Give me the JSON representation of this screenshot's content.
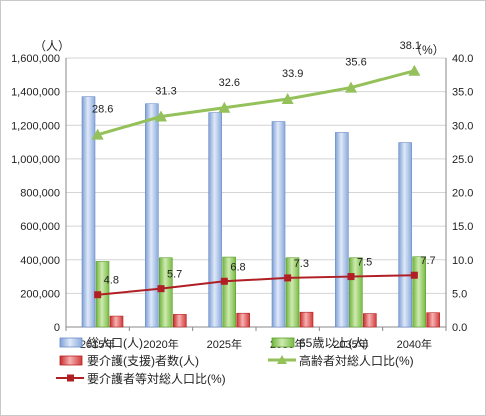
{
  "chart_data": {
    "type": "bar",
    "categories": [
      "2015年",
      "2020年",
      "2025年",
      "2030年",
      "2035年",
      "2040年"
    ],
    "left_axis": {
      "unit_label": "（人）",
      "min": 0,
      "max": 1600000,
      "step": 200000,
      "tick_labels": [
        "0",
        "200,000",
        "400,000",
        "600,000",
        "800,000",
        "1,000,000",
        "1,200,000",
        "1,400,000",
        "1,600,000"
      ]
    },
    "right_axis": {
      "unit_label": "（%）",
      "min": 0,
      "max": 40,
      "step": 5,
      "tick_labels": [
        "0.0",
        "5.0",
        "10.0",
        "15.0",
        "20.0",
        "25.0",
        "30.0",
        "35.0",
        "40.0"
      ]
    },
    "grid": true,
    "legend_position": "bottom",
    "series": [
      {
        "name": "総人口(人)",
        "type": "bar",
        "axis": "left",
        "color": "#9db9e3",
        "values": [
          1370000,
          1328000,
          1275000,
          1222000,
          1157000,
          1097000
        ]
      },
      {
        "name": "65歳以上(人)",
        "type": "bar",
        "axis": "left",
        "color": "#8fc85c",
        "values": [
          390000,
          412000,
          416000,
          412000,
          412000,
          418000
        ]
      },
      {
        "name": "要介護(支援)者数(人)",
        "type": "bar",
        "axis": "left",
        "color": "#e05656",
        "values": [
          65000,
          75000,
          82000,
          88000,
          80000,
          85000
        ]
      },
      {
        "name": "高齢者対総人口比(%)",
        "type": "line",
        "axis": "right",
        "color": "#94c15a",
        "marker": "triangle",
        "values": [
          28.6,
          31.3,
          32.6,
          33.9,
          35.6,
          38.1
        ],
        "labels": [
          "28.6",
          "31.3",
          "32.6",
          "33.9",
          "35.6",
          "38.1"
        ]
      },
      {
        "name": "要介護者等対総人口比(%)",
        "type": "line",
        "axis": "right",
        "color": "#b01f24",
        "marker": "square",
        "values": [
          4.8,
          5.7,
          6.8,
          7.3,
          7.5,
          7.7
        ],
        "labels": [
          "4.8",
          "5.7",
          "6.8",
          "7.3",
          "7.5",
          "7.7"
        ]
      }
    ]
  }
}
